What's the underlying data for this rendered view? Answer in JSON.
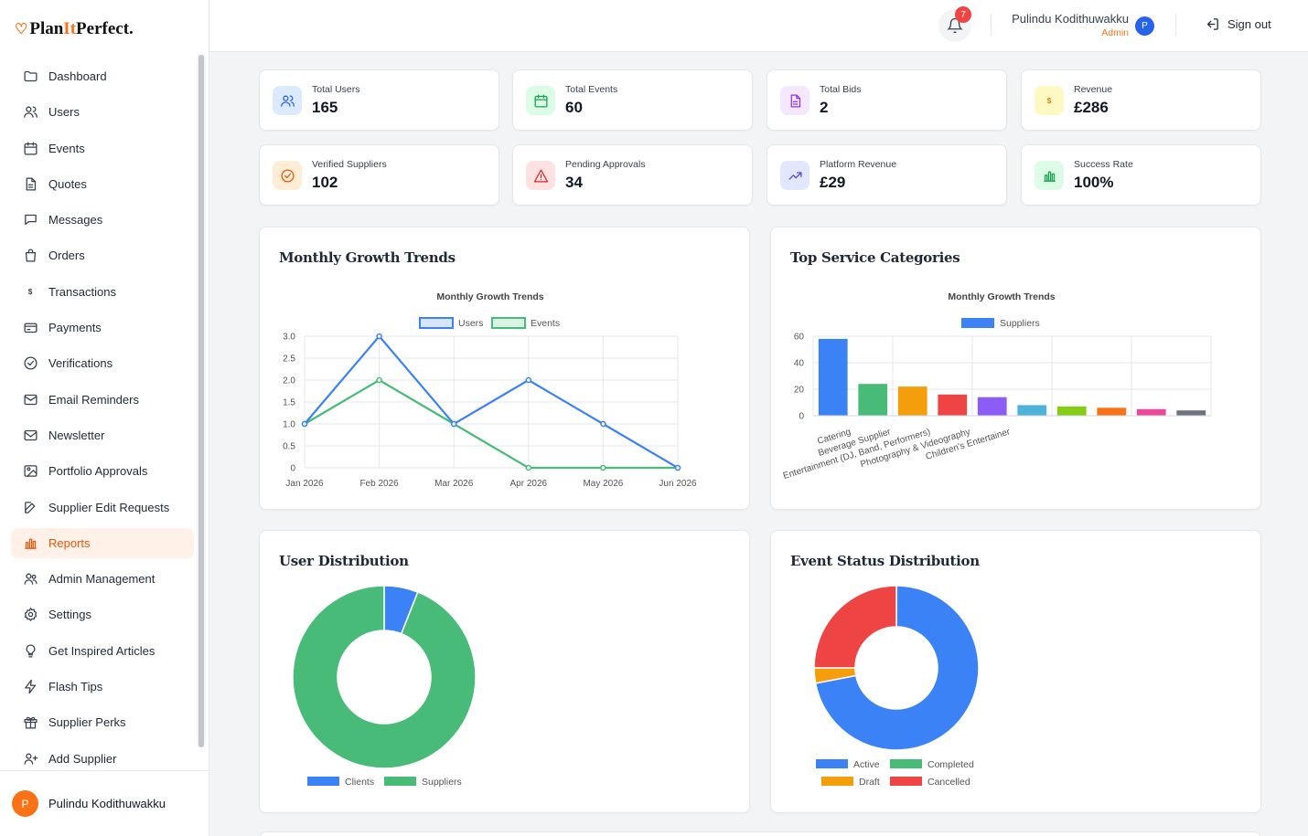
{
  "brand": {
    "pre": "Plan",
    "mid": "It",
    "post": "Perfect."
  },
  "sidebar": {
    "items": [
      {
        "label": "Dashboard",
        "icon": "folder-icon"
      },
      {
        "label": "Users",
        "icon": "users-icon"
      },
      {
        "label": "Events",
        "icon": "calendar-icon"
      },
      {
        "label": "Quotes",
        "icon": "document-icon"
      },
      {
        "label": "Messages",
        "icon": "chat-icon"
      },
      {
        "label": "Orders",
        "icon": "bag-icon"
      },
      {
        "label": "Transactions",
        "icon": "dollar-icon"
      },
      {
        "label": "Payments",
        "icon": "card-icon"
      },
      {
        "label": "Verifications",
        "icon": "check-circle-icon"
      },
      {
        "label": "Email Reminders",
        "icon": "mail-icon"
      },
      {
        "label": "Newsletter",
        "icon": "mail-open-icon"
      },
      {
        "label": "Portfolio Approvals",
        "icon": "image-icon"
      },
      {
        "label": "Supplier Edit Requests",
        "icon": "edit-icon"
      },
      {
        "label": "Reports",
        "icon": "bar-chart-icon"
      },
      {
        "label": "Admin Management",
        "icon": "user-group-icon"
      },
      {
        "label": "Settings",
        "icon": "gear-icon"
      },
      {
        "label": "Get Inspired Articles",
        "icon": "lightbulb-icon"
      },
      {
        "label": "Flash Tips",
        "icon": "bolt-icon"
      },
      {
        "label": "Supplier Perks",
        "icon": "gift-icon"
      },
      {
        "label": "Add Supplier",
        "icon": "user-plus-icon"
      }
    ],
    "active": "Reports",
    "user": {
      "initial": "P",
      "name": "Pulindu Kodithuwakku"
    }
  },
  "header": {
    "notifications": "7",
    "user_name": "Pulindu Kodithuwakku",
    "user_role": "Admin",
    "user_initial": "P",
    "signout_label": "Sign out"
  },
  "stats": [
    {
      "label": "Total Users",
      "value": "165",
      "icon": "users-icon",
      "color": "#2563eb",
      "bg": "#dbeafe"
    },
    {
      "label": "Total Events",
      "value": "60",
      "icon": "calendar-icon",
      "color": "#16a34a",
      "bg": "#dcfce7"
    },
    {
      "label": "Total Bids",
      "value": "2",
      "icon": "document-icon",
      "color": "#9333ea",
      "bg": "#f3e8ff"
    },
    {
      "label": "Revenue",
      "value": "£286",
      "icon": "dollar-icon",
      "color": "#ca8a04",
      "bg": "#fef9c3"
    },
    {
      "label": "Verified Suppliers",
      "value": "102",
      "icon": "check-circle-icon",
      "color": "#ea580c",
      "bg": "#ffedd5"
    },
    {
      "label": "Pending Approvals",
      "value": "34",
      "icon": "warning-icon",
      "color": "#dc2626",
      "bg": "#fee2e2"
    },
    {
      "label": "Platform Revenue",
      "value": "£29",
      "icon": "trend-up-icon",
      "color": "#4f46e5",
      "bg": "#e0e7ff"
    },
    {
      "label": "Success Rate",
      "value": "100%",
      "icon": "bar-chart-icon",
      "color": "#16a34a",
      "bg": "#dcfce7"
    }
  ],
  "panels": {
    "growth_title": "Monthly Growth Trends",
    "categories_title": "Top Service Categories",
    "users_title": "User Distribution",
    "events_title": "Event Status Distribution"
  },
  "chart_data": [
    {
      "type": "line",
      "title": "Monthly Growth Trends",
      "x": [
        "Jan 2026",
        "Feb 2026",
        "Mar 2026",
        "Apr 2026",
        "May 2026",
        "Jun 2026"
      ],
      "series": [
        {
          "name": "Users",
          "values": [
            1,
            3,
            1,
            2,
            1,
            0
          ],
          "color": "#3b82f6"
        },
        {
          "name": "Events",
          "values": [
            1,
            2,
            1,
            0,
            0,
            0
          ],
          "color": "#48bb78"
        }
      ],
      "ylim": [
        0,
        3
      ],
      "yticks": [
        "0",
        "0.5",
        "1.0",
        "1.5",
        "2.0",
        "2.5",
        "3.0"
      ],
      "legend": "top",
      "grid": true
    },
    {
      "type": "bar",
      "title": "Monthly Growth Trends",
      "categories": [
        "Catering",
        "Beverage Supplier",
        "Entertainment (DJ, Band, Performers)",
        "Photography & Videography",
        "Children's Entertainer",
        "",
        "",
        "",
        "",
        ""
      ],
      "series": [
        {
          "name": "Suppliers",
          "values": [
            58,
            24,
            22,
            16,
            14,
            8,
            7,
            6,
            5,
            4
          ]
        }
      ],
      "colors": [
        "#3b82f6",
        "#48bb78",
        "#f59e0b",
        "#ef4444",
        "#8b5cf6",
        "#4fb3d9",
        "#84cc16",
        "#f97316",
        "#ec4899",
        "#6b7280"
      ],
      "ylim": [
        0,
        60
      ],
      "yticks": [
        "0",
        "20",
        "40",
        "60"
      ],
      "legend": "top",
      "grid": true
    },
    {
      "type": "pie",
      "title": "",
      "labels": [
        "Clients",
        "Suppliers"
      ],
      "values": [
        6,
        94
      ],
      "colors": [
        "#3b82f6",
        "#48bb78"
      ],
      "legend": "bottom"
    },
    {
      "type": "pie",
      "title": "",
      "labels": [
        "Active",
        "Completed",
        "Draft",
        "Cancelled"
      ],
      "values": [
        72,
        0,
        3,
        25
      ],
      "colors": [
        "#3b82f6",
        "#48bb78",
        "#f59e0b",
        "#ef4444"
      ],
      "legend": "bottom"
    }
  ]
}
